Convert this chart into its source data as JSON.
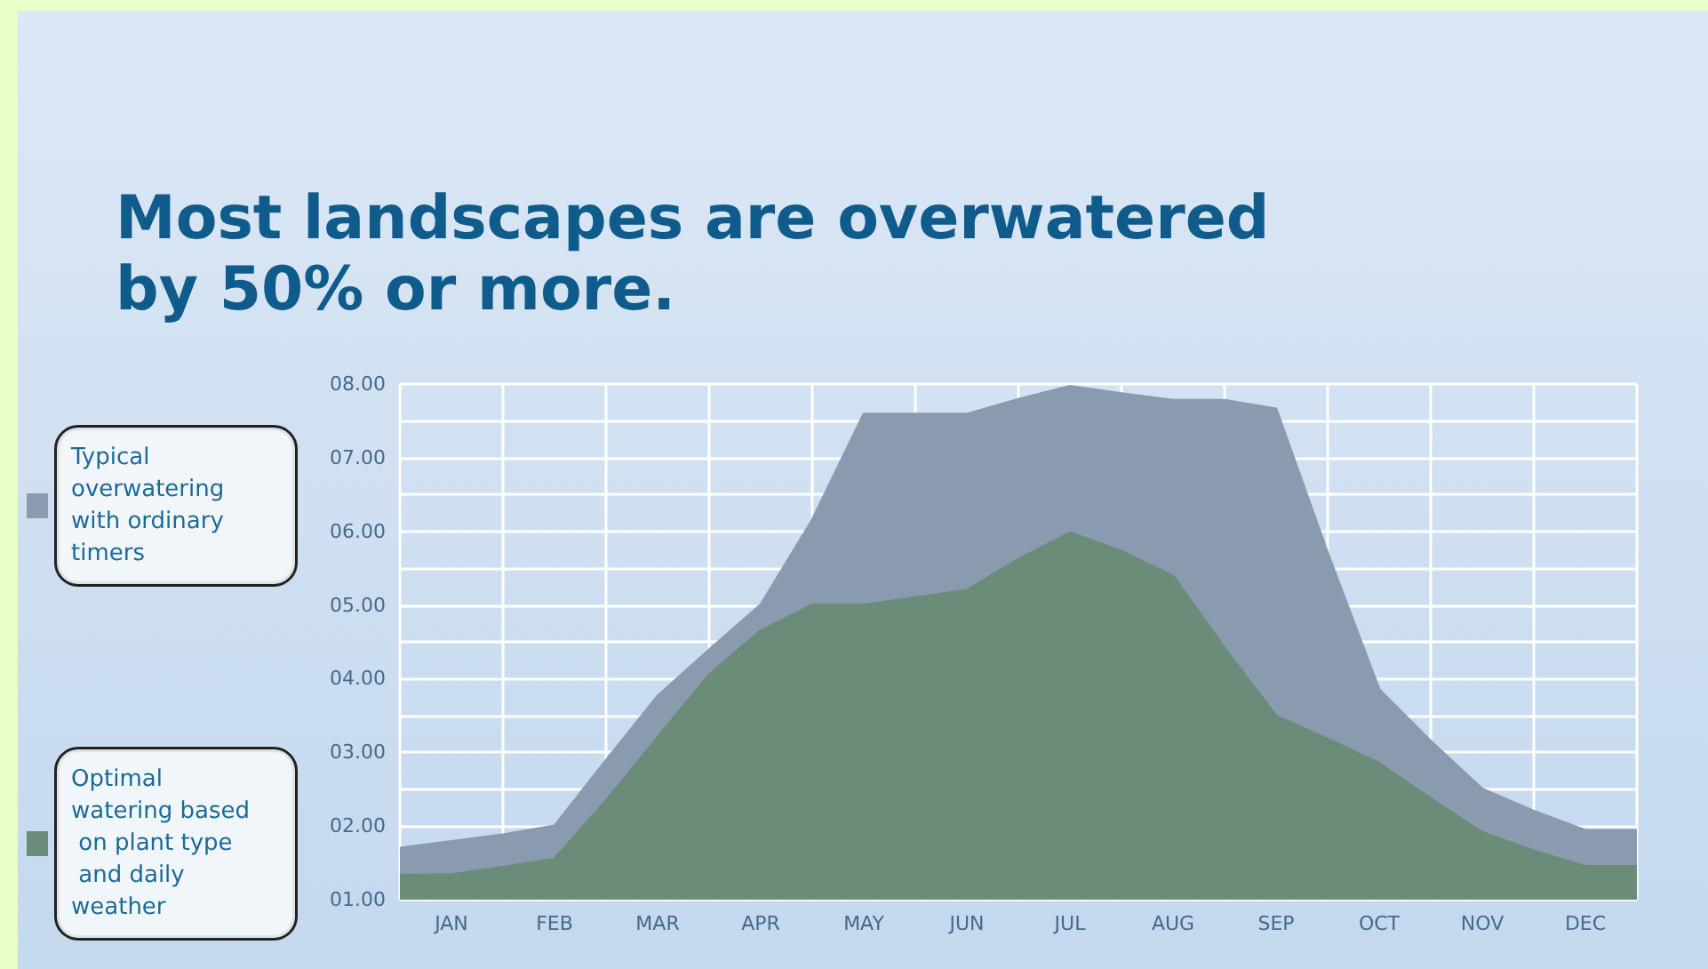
{
  "chart_data": {
    "type": "area",
    "title": "Most landscapes are overwatered by 50% or more.",
    "categories": [
      null,
      "JAN",
      null,
      "FEB",
      null,
      "MAR",
      null,
      "APR",
      null,
      "MAY",
      null,
      "JUN",
      null,
      "JUL",
      null,
      "AUG",
      null,
      "SEP",
      null,
      "OCT",
      null,
      "NOV",
      null,
      "DEC",
      null
    ],
    "ylim": [
      1,
      8
    ],
    "yticks": [
      {
        "value": 1,
        "label": "01.00"
      },
      {
        "value": 2,
        "label": "02.00"
      },
      {
        "value": 3,
        "label": "03.00"
      },
      {
        "value": 4,
        "label": "04.00"
      },
      {
        "value": 5,
        "label": "05.00"
      },
      {
        "value": 6,
        "label": "06.00"
      },
      {
        "value": 7,
        "label": "07.00"
      },
      {
        "value": 8,
        "label": "08.00"
      }
    ],
    "grid": true,
    "legend": "left",
    "series": [
      {
        "name": "Typical overwatering with ordinary timers",
        "color": "#8a9bb0",
        "values": [
          1.7,
          1.79,
          1.88,
          2.0,
          2.89,
          3.76,
          4.39,
          5.0,
          6.15,
          7.59,
          7.59,
          7.59,
          7.79,
          7.97,
          7.87,
          7.78,
          7.78,
          7.66,
          5.7,
          3.85,
          3.15,
          2.5,
          2.2,
          1.94,
          1.94
        ]
      },
      {
        "name": "Optimal watering based on plant type and daily weather",
        "color": "#6b8c78",
        "values": [
          1.33,
          1.34,
          1.44,
          1.55,
          2.34,
          3.2,
          4.05,
          4.65,
          5.0,
          5.0,
          5.1,
          5.2,
          5.62,
          5.98,
          5.73,
          5.39,
          4.41,
          3.49,
          3.18,
          2.85,
          2.37,
          1.91,
          1.66,
          1.45,
          1.45
        ]
      }
    ]
  }
}
